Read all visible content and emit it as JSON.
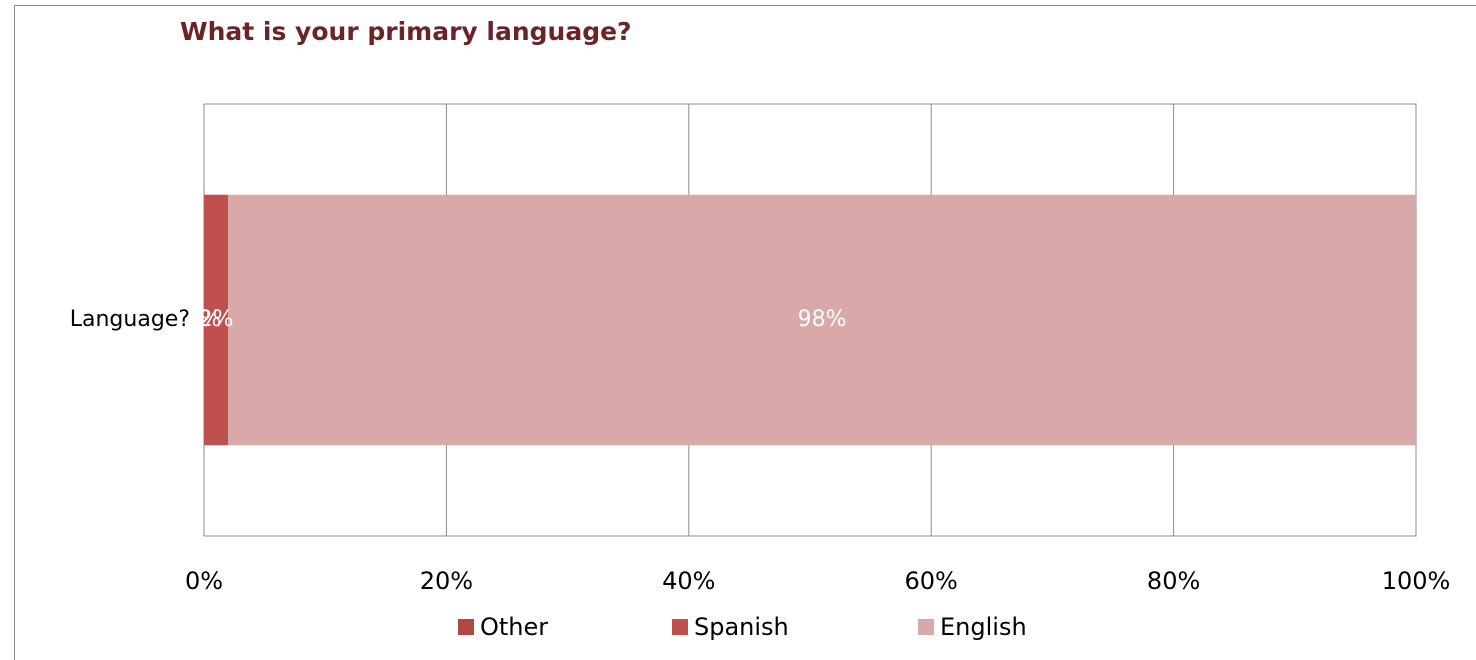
{
  "chart_data": {
    "type": "stacked-barh",
    "title": "What is your primary language?",
    "categories": [
      "Language?"
    ],
    "series": [
      {
        "name": "Other",
        "color": "#b04844",
        "values": [
          0
        ],
        "value_labels": [
          "0%"
        ]
      },
      {
        "name": "Spanish",
        "color": "#c0504d",
        "values": [
          2
        ],
        "value_labels": [
          "2%"
        ]
      },
      {
        "name": "English",
        "color": "#d9a9a9",
        "values": [
          98
        ],
        "value_labels": [
          "98%"
        ]
      }
    ],
    "xlim": [
      0,
      100
    ],
    "xticks": [
      {
        "value": 0,
        "label": "0%"
      },
      {
        "value": 20,
        "label": "20%"
      },
      {
        "value": 40,
        "label": "40%"
      },
      {
        "value": 60,
        "label": "60%"
      },
      {
        "value": 80,
        "label": "80%"
      },
      {
        "value": 100,
        "label": "100%"
      }
    ],
    "grid": true,
    "legend": "bottom"
  }
}
